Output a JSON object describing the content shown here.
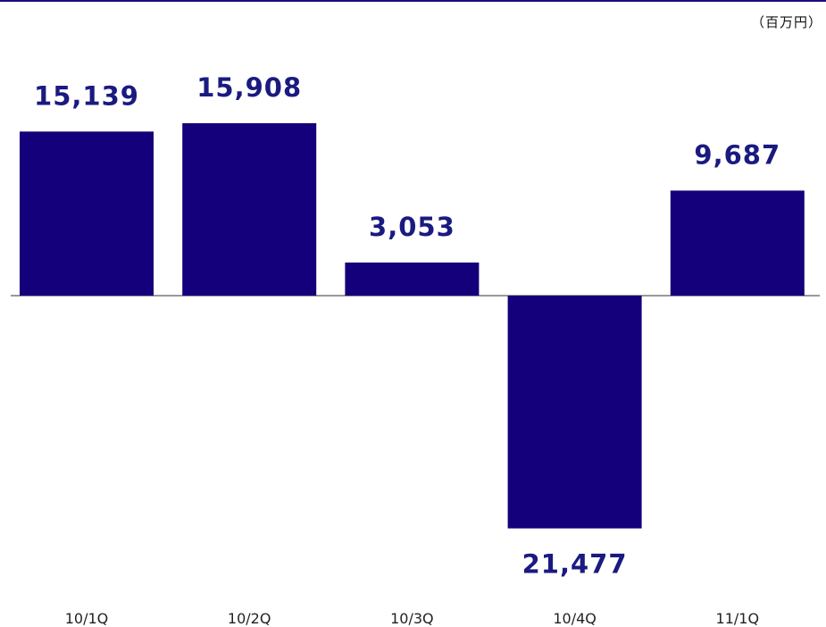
{
  "unit_label": "（百万円）",
  "colors": {
    "bar": "#13007a",
    "label": "#1a1a80",
    "axis": "#333333",
    "tick_text": "#222222",
    "rule": "#1a0e7a"
  },
  "chart_data": {
    "type": "bar",
    "categories": [
      "10/1Q",
      "10/2Q",
      "10/3Q",
      "10/4Q",
      "11/1Q"
    ],
    "values": [
      15139,
      15908,
      3053,
      -21477,
      9687
    ],
    "value_labels": [
      "15,139",
      "15,908",
      "3,053",
      "21,477",
      "9,687"
    ],
    "title": "",
    "xlabel": "",
    "ylabel": "",
    "ylim": [
      -22000,
      17500
    ],
    "grid": false,
    "legend": "none"
  }
}
